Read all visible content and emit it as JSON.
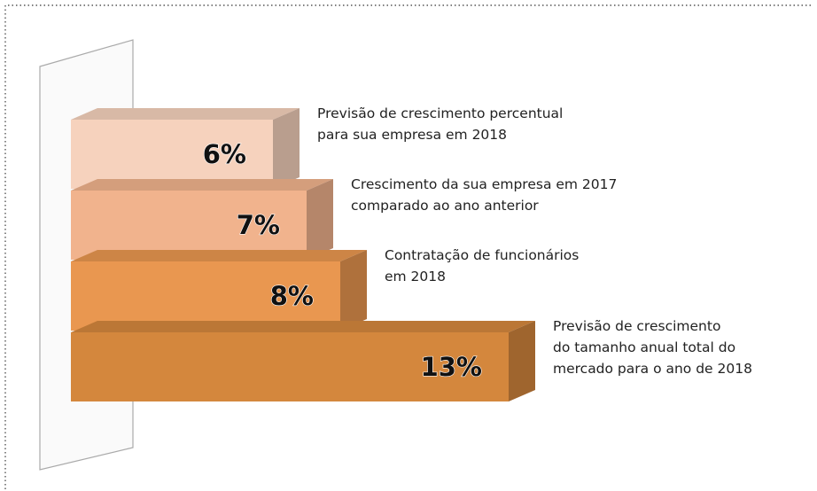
{
  "chart_data": {
    "type": "bar3d",
    "categories": [
      [
        "Previsão de crescimento percentual",
        "para sua empresa em 2018"
      ],
      [
        "Crescimento da sua empresa em 2017",
        "comparado ao ano anterior"
      ],
      [
        "Contratação de funcionários",
        "em 2018"
      ],
      [
        "Previsão de crescimento",
        "do tamanho anual total do",
        "mercado para o ano de 2018"
      ]
    ],
    "values": [
      6,
      7,
      8,
      13
    ],
    "value_labels": [
      "6%",
      "7%",
      "8%",
      "13%"
    ],
    "colors": [
      "#f6d2bd",
      "#f1b38d",
      "#e99750",
      "#d4873d"
    ]
  }
}
